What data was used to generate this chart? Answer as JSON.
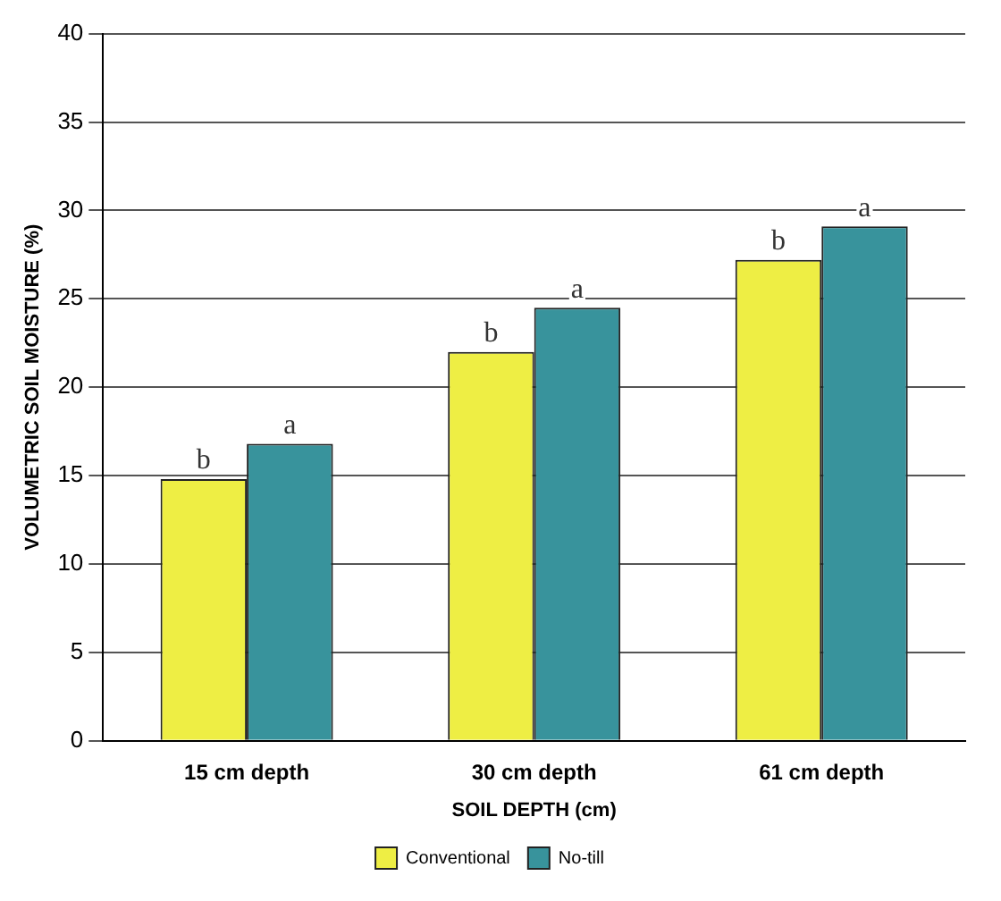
{
  "chart_data": {
    "type": "bar",
    "xlabel": "SOIL DEPTH (cm)",
    "ylabel": "VOLUMETRIC SOIL MOISTURE (%)",
    "categories": [
      "15 cm depth",
      "30 cm depth",
      "61 cm depth"
    ],
    "series": [
      {
        "name": "Conventional",
        "color": "#eeee44",
        "values": [
          14.8,
          22.0,
          27.2
        ]
      },
      {
        "name": "No-till",
        "color": "#38939c",
        "values": [
          16.8,
          24.5,
          29.1
        ]
      }
    ],
    "ylim": [
      0,
      40
    ],
    "yticks": [
      0,
      5,
      10,
      15,
      20,
      25,
      30,
      35,
      40
    ],
    "grid": "y",
    "legend": "bottom",
    "annotations": [
      {
        "text": "b",
        "x": "15 cm depth",
        "y": 14.8
      },
      {
        "text": "a",
        "x": "15 cm depth",
        "y": 16.8
      },
      {
        "text": "b",
        "x": "30 cm depth",
        "y": 22.0
      },
      {
        "text": "a",
        "x": "30 cm depth",
        "y": 24.5
      },
      {
        "text": "b",
        "x": "61 cm depth",
        "y": 27.2
      },
      {
        "text": "a",
        "x": "61 cm depth",
        "y": 29.1
      }
    ]
  }
}
